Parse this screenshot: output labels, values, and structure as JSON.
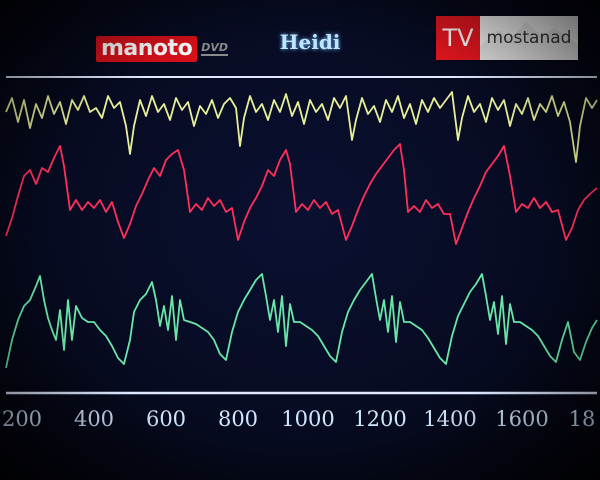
{
  "title": "Heidi",
  "logos": {
    "manoto": "manoto",
    "manoto_suffix": "DVD",
    "tv_badge": "TV",
    "tv_name": "mostanad"
  },
  "axis": {
    "tick_labels": [
      "200",
      "400",
      "600",
      "800",
      "1000",
      "1200",
      "1400",
      "1600",
      "18"
    ]
  },
  "colors": {
    "background": "#070b22",
    "trace_top": "#e8ef9a",
    "trace_middle": "#ff2f5a",
    "trace_bottom": "#69e6a8",
    "axis_line": "#dfe8ff",
    "label": "#cfe8ff",
    "manoto_red": "#d8101a",
    "tv_red": "#e3161f"
  }
}
